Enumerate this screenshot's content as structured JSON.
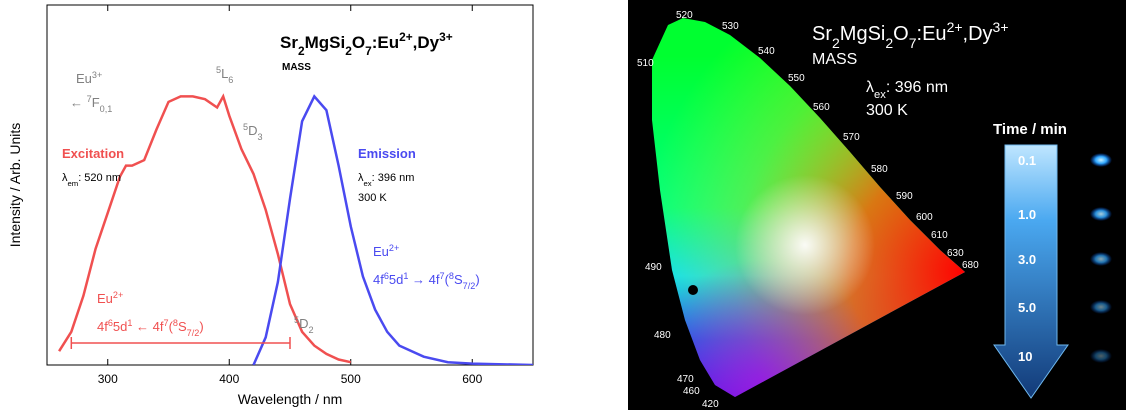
{
  "chart_data": [
    {
      "type": "line",
      "title": [
        {
          "t": "Sr"
        },
        {
          "sub": "2"
        },
        {
          "t": "MgSi"
        },
        {
          "sub": "2"
        },
        {
          "t": "O"
        },
        {
          "sub": "7"
        },
        {
          "t": ":Eu"
        },
        {
          "sup": "2+"
        },
        {
          "t": ",Dy"
        },
        {
          "sup": "3+"
        }
      ],
      "subtitle": "MASS",
      "x_label": "Wavelength / nm",
      "y_label": "Intensity / Arb. Units",
      "xlim": [
        250,
        650
      ],
      "xticks": [
        300,
        400,
        500,
        600
      ],
      "ylim": [
        0,
        1.3
      ],
      "series": [
        {
          "name": "Excitation",
          "color": "#f05050",
          "x": [
            260,
            270,
            280,
            290,
            300,
            310,
            315,
            320,
            330,
            340,
            350,
            360,
            370,
            380,
            390,
            395,
            400,
            410,
            420,
            430,
            440,
            450,
            460,
            470,
            480,
            490,
            500
          ],
          "values": [
            0.05,
            0.12,
            0.25,
            0.42,
            0.55,
            0.68,
            0.72,
            0.72,
            0.74,
            0.85,
            0.95,
            0.97,
            0.97,
            0.96,
            0.93,
            0.97,
            0.9,
            0.78,
            0.69,
            0.56,
            0.4,
            0.22,
            0.12,
            0.07,
            0.04,
            0.02,
            0.01
          ]
        },
        {
          "name": "Emission",
          "color": "#4a4af0",
          "x": [
            420,
            430,
            440,
            450,
            460,
            470,
            480,
            490,
            500,
            510,
            520,
            530,
            540,
            560,
            580,
            600,
            650
          ],
          "values": [
            0,
            0.1,
            0.3,
            0.6,
            0.88,
            0.97,
            0.92,
            0.72,
            0.5,
            0.32,
            0.2,
            0.12,
            0.07,
            0.03,
            0.01,
            0.005,
            0
          ]
        }
      ],
      "annotations": [
        {
          "color": "#f05050",
          "text": [
            {
              "t": "Excitation"
            }
          ]
        },
        {
          "color": "#000000",
          "text": [
            {
              "t": "λ"
            },
            {
              "sub": "em"
            },
            {
              "t": ": 520 nm"
            }
          ]
        },
        {
          "color": "#4a4af0",
          "text": [
            {
              "t": "Emission"
            }
          ]
        },
        {
          "color": "#000000",
          "text": [
            {
              "t": "λ"
            },
            {
              "sub": "ex"
            },
            {
              "t": ": 396 nm"
            }
          ]
        },
        {
          "color": "#000000",
          "text": [
            {
              "t": "300 K"
            }
          ]
        },
        {
          "color": "#808080",
          "text": [
            {
              "t": "Eu"
            },
            {
              "sup": "3+"
            }
          ]
        },
        {
          "color": "#808080",
          "text": [
            {
              "t": "← "
            },
            {
              "sup": "7"
            },
            {
              "t": "F"
            },
            {
              "sub": "0,1"
            }
          ]
        },
        {
          "color": "#808080",
          "text": [
            {
              "sup": "5"
            },
            {
              "t": "L"
            },
            {
              "sub": "6"
            }
          ]
        },
        {
          "color": "#808080",
          "text": [
            {
              "sup": "5"
            },
            {
              "t": "D"
            },
            {
              "sub": "3"
            }
          ]
        },
        {
          "color": "#808080",
          "text": [
            {
              "sup": "5"
            },
            {
              "t": "D"
            },
            {
              "sub": "2"
            }
          ]
        },
        {
          "color": "#f05050",
          "text": [
            {
              "t": "Eu"
            },
            {
              "sup": "2+"
            }
          ]
        },
        {
          "color": "#f05050",
          "text": [
            {
              "t": "4f"
            },
            {
              "sup": "6"
            },
            {
              "t": "5d"
            },
            {
              "sup": "1"
            },
            {
              "t": " ← 4f"
            },
            {
              "sup": "7"
            },
            {
              "t": "("
            },
            {
              "sup": "8"
            },
            {
              "t": "S"
            },
            {
              "sub": "7/2"
            },
            {
              "t": ")"
            }
          ]
        },
        {
          "color": "#4a4af0",
          "text": [
            {
              "t": "Eu"
            },
            {
              "sup": "2+"
            }
          ]
        },
        {
          "color": "#4a4af0",
          "text": [
            {
              "t": "4f"
            },
            {
              "sup": "6"
            },
            {
              "t": "5d"
            },
            {
              "sup": "1"
            },
            {
              "t": " → 4f"
            },
            {
              "sup": "7"
            },
            {
              "t": "("
            },
            {
              "sup": "8"
            },
            {
              "t": "S"
            },
            {
              "sub": "7/2"
            },
            {
              "t": ")"
            }
          ]
        }
      ]
    },
    {
      "type": "chromaticity",
      "title": [
        {
          "t": "Sr"
        },
        {
          "sub": "2"
        },
        {
          "t": "MgSi"
        },
        {
          "sub": "2"
        },
        {
          "t": "O"
        },
        {
          "sub": "7"
        },
        {
          "t": ":Eu"
        },
        {
          "sup": "2+"
        },
        {
          "t": ",Dy"
        },
        {
          "sup": "3+"
        }
      ],
      "subtitle": "MASS",
      "annotations": [
        [
          {
            "t": "λ"
          },
          {
            "sub": "ex"
          },
          {
            "t": ": 396 nm"
          }
        ],
        [
          {
            "t": "300 K"
          }
        ]
      ],
      "wavelength_labels": [
        510,
        520,
        530,
        540,
        550,
        560,
        570,
        580,
        590,
        600,
        610,
        630,
        680,
        490,
        480,
        470,
        460,
        420
      ],
      "time_title": "Time / min",
      "time_labels": [
        "0.1",
        "1.0",
        "3.0",
        "5.0",
        "10"
      ]
    }
  ]
}
